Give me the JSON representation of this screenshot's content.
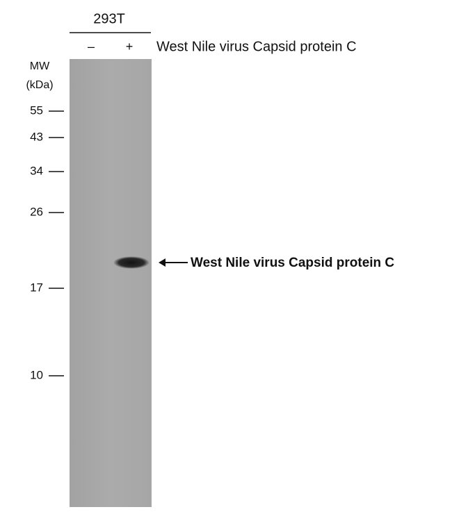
{
  "sample": "293T",
  "lanes": [
    "–",
    "+"
  ],
  "target_header": "West Nile virus Capsid protein C",
  "mw_label": {
    "line1": "MW",
    "line2": "(kDa)"
  },
  "markers": [
    55,
    43,
    34,
    26,
    17,
    10
  ],
  "band_label": "West Nile virus Capsid protein C"
}
